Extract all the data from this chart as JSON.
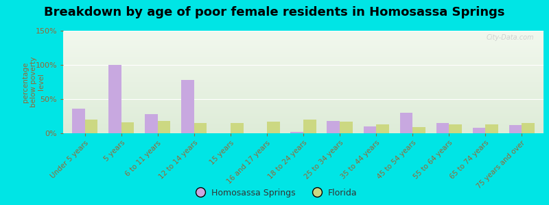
{
  "title": "Breakdown by age of poor female residents in Homosassa Springs",
  "ylabel": "percentage\nbelow poverty\nlevel",
  "categories": [
    "Under 5 years",
    "5 years",
    "6 to 11 years",
    "12 to 14 years",
    "15 years",
    "16 and 17 years",
    "18 to 24 years",
    "25 to 34 years",
    "35 to 44 years",
    "45 to 54 years",
    "55 to 64 years",
    "65 to 74 years",
    "75 years and over"
  ],
  "homosassa": [
    36,
    100,
    28,
    78,
    0,
    0,
    2,
    18,
    10,
    30,
    15,
    8,
    12
  ],
  "florida": [
    20,
    16,
    18,
    15,
    15,
    17,
    20,
    17,
    13,
    9,
    13,
    13,
    15
  ],
  "homosassa_color": "#c8a8e0",
  "florida_color": "#ccd882",
  "ylim": [
    0,
    150
  ],
  "yticks": [
    0,
    50,
    100,
    150
  ],
  "ytick_labels": [
    "0%",
    "50%",
    "100%",
    "150%"
  ],
  "plot_bg_top": "#f2f8ee",
  "plot_bg_bottom": "#deecd8",
  "outer_background": "#00e5e5",
  "bar_width": 0.35,
  "title_fontsize": 13,
  "legend_labels": [
    "Homosassa Springs",
    "Florida"
  ],
  "watermark": "City-Data.com",
  "tick_color": "#996633",
  "label_color": "#996633"
}
